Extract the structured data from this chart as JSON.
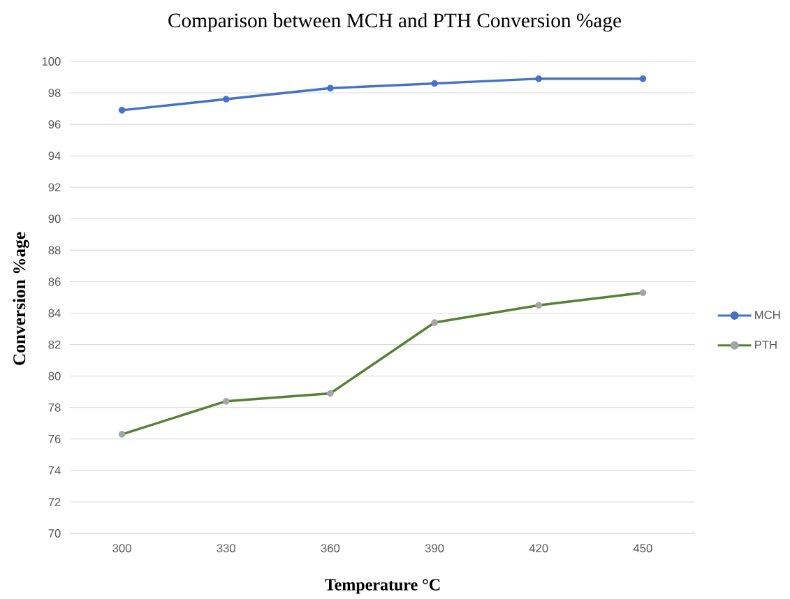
{
  "chart_data": {
    "type": "line",
    "title": "Comparison between MCH and PTH Conversion %age",
    "xlabel": "Temperature °C",
    "ylabel": "Conversion %age",
    "categories": [
      "300",
      "330",
      "360",
      "390",
      "420",
      "450"
    ],
    "series": [
      {
        "name": "MCH",
        "color": "#4472c4",
        "values": [
          96.9,
          97.6,
          98.3,
          98.6,
          98.9,
          98.9
        ]
      },
      {
        "name": "PTH",
        "color": "#548235",
        "colors": [
          "#a5a5a5",
          "#a5a5a5",
          "#a5a5a5",
          "#a5a5a5",
          "#a5a5a5",
          "#a5a5a5"
        ],
        "values": [
          76.3,
          78.4,
          78.9,
          83.4,
          84.5,
          85.3
        ]
      }
    ],
    "ylim": [
      70,
      100
    ],
    "yticks": [
      70,
      72,
      74,
      76,
      78,
      80,
      82,
      84,
      86,
      88,
      90,
      92,
      94,
      96,
      98,
      100
    ],
    "grid": "y",
    "legend": "right",
    "marker": "circle",
    "line_style": "solid"
  }
}
